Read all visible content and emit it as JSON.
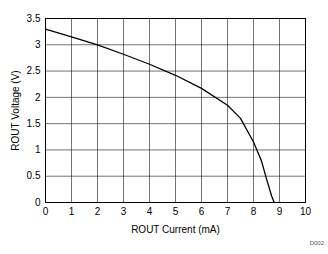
{
  "chart_data": {
    "type": "line",
    "x_label": "ROUT Current (mA)",
    "y_label": "ROUT Voltage (V)",
    "annotation": "D002",
    "x": [
      0,
      1,
      2,
      3,
      4,
      5,
      6,
      7,
      7.5,
      8,
      8.3,
      8.5,
      8.7,
      8.8
    ],
    "values": [
      3.3,
      3.15,
      3.0,
      2.82,
      2.63,
      2.42,
      2.17,
      1.85,
      1.6,
      1.15,
      0.8,
      0.45,
      0.12,
      0
    ],
    "color": "#000000",
    "xlim": [
      0,
      10
    ],
    "xticks": [
      0,
      1,
      2,
      3,
      4,
      5,
      6,
      7,
      8,
      9,
      10
    ],
    "ylim": [
      0,
      3.5
    ],
    "yticks": [
      0,
      0.5,
      1,
      1.5,
      2,
      2.5,
      3,
      3.5
    ],
    "grid": true
  }
}
